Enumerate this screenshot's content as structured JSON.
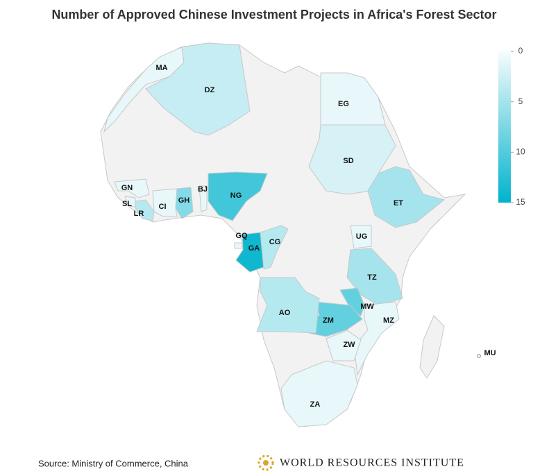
{
  "chart_data": {
    "type": "choropleth",
    "title": "Number of Approved Chinese Investment Projects in Africa's Forest Sector",
    "regions": [
      {
        "code": "MA",
        "value": 1
      },
      {
        "code": "DZ",
        "value": 3
      },
      {
        "code": "EG",
        "value": 1
      },
      {
        "code": "SD",
        "value": 2
      },
      {
        "code": "ET",
        "value": 5
      },
      {
        "code": "NG",
        "value": 11
      },
      {
        "code": "GH",
        "value": 7
      },
      {
        "code": "BJ",
        "value": 1
      },
      {
        "code": "CI",
        "value": 1
      },
      {
        "code": "GN",
        "value": 1
      },
      {
        "code": "SL",
        "value": 1
      },
      {
        "code": "LR",
        "value": 4
      },
      {
        "code": "GQ",
        "value": 1
      },
      {
        "code": "GA",
        "value": 14
      },
      {
        "code": "CG",
        "value": 4
      },
      {
        "code": "UG",
        "value": 1
      },
      {
        "code": "TZ",
        "value": 5
      },
      {
        "code": "MW",
        "value": 9
      },
      {
        "code": "ZM",
        "value": 9
      },
      {
        "code": "AO",
        "value": 4
      },
      {
        "code": "MZ",
        "value": 1
      },
      {
        "code": "ZW",
        "value": 1
      },
      {
        "code": "ZA",
        "value": 1
      },
      {
        "code": "MU",
        "value": 1
      }
    ],
    "colorscale": [
      "#f7fcfd",
      "#00b3cc"
    ],
    "zlim": [
      0,
      15
    ],
    "zticks": [
      0,
      5,
      10,
      15
    ],
    "source": "Source: Ministry of Commerce, China",
    "logo_text": "WORLD RESOURCES INSTITUTE"
  }
}
